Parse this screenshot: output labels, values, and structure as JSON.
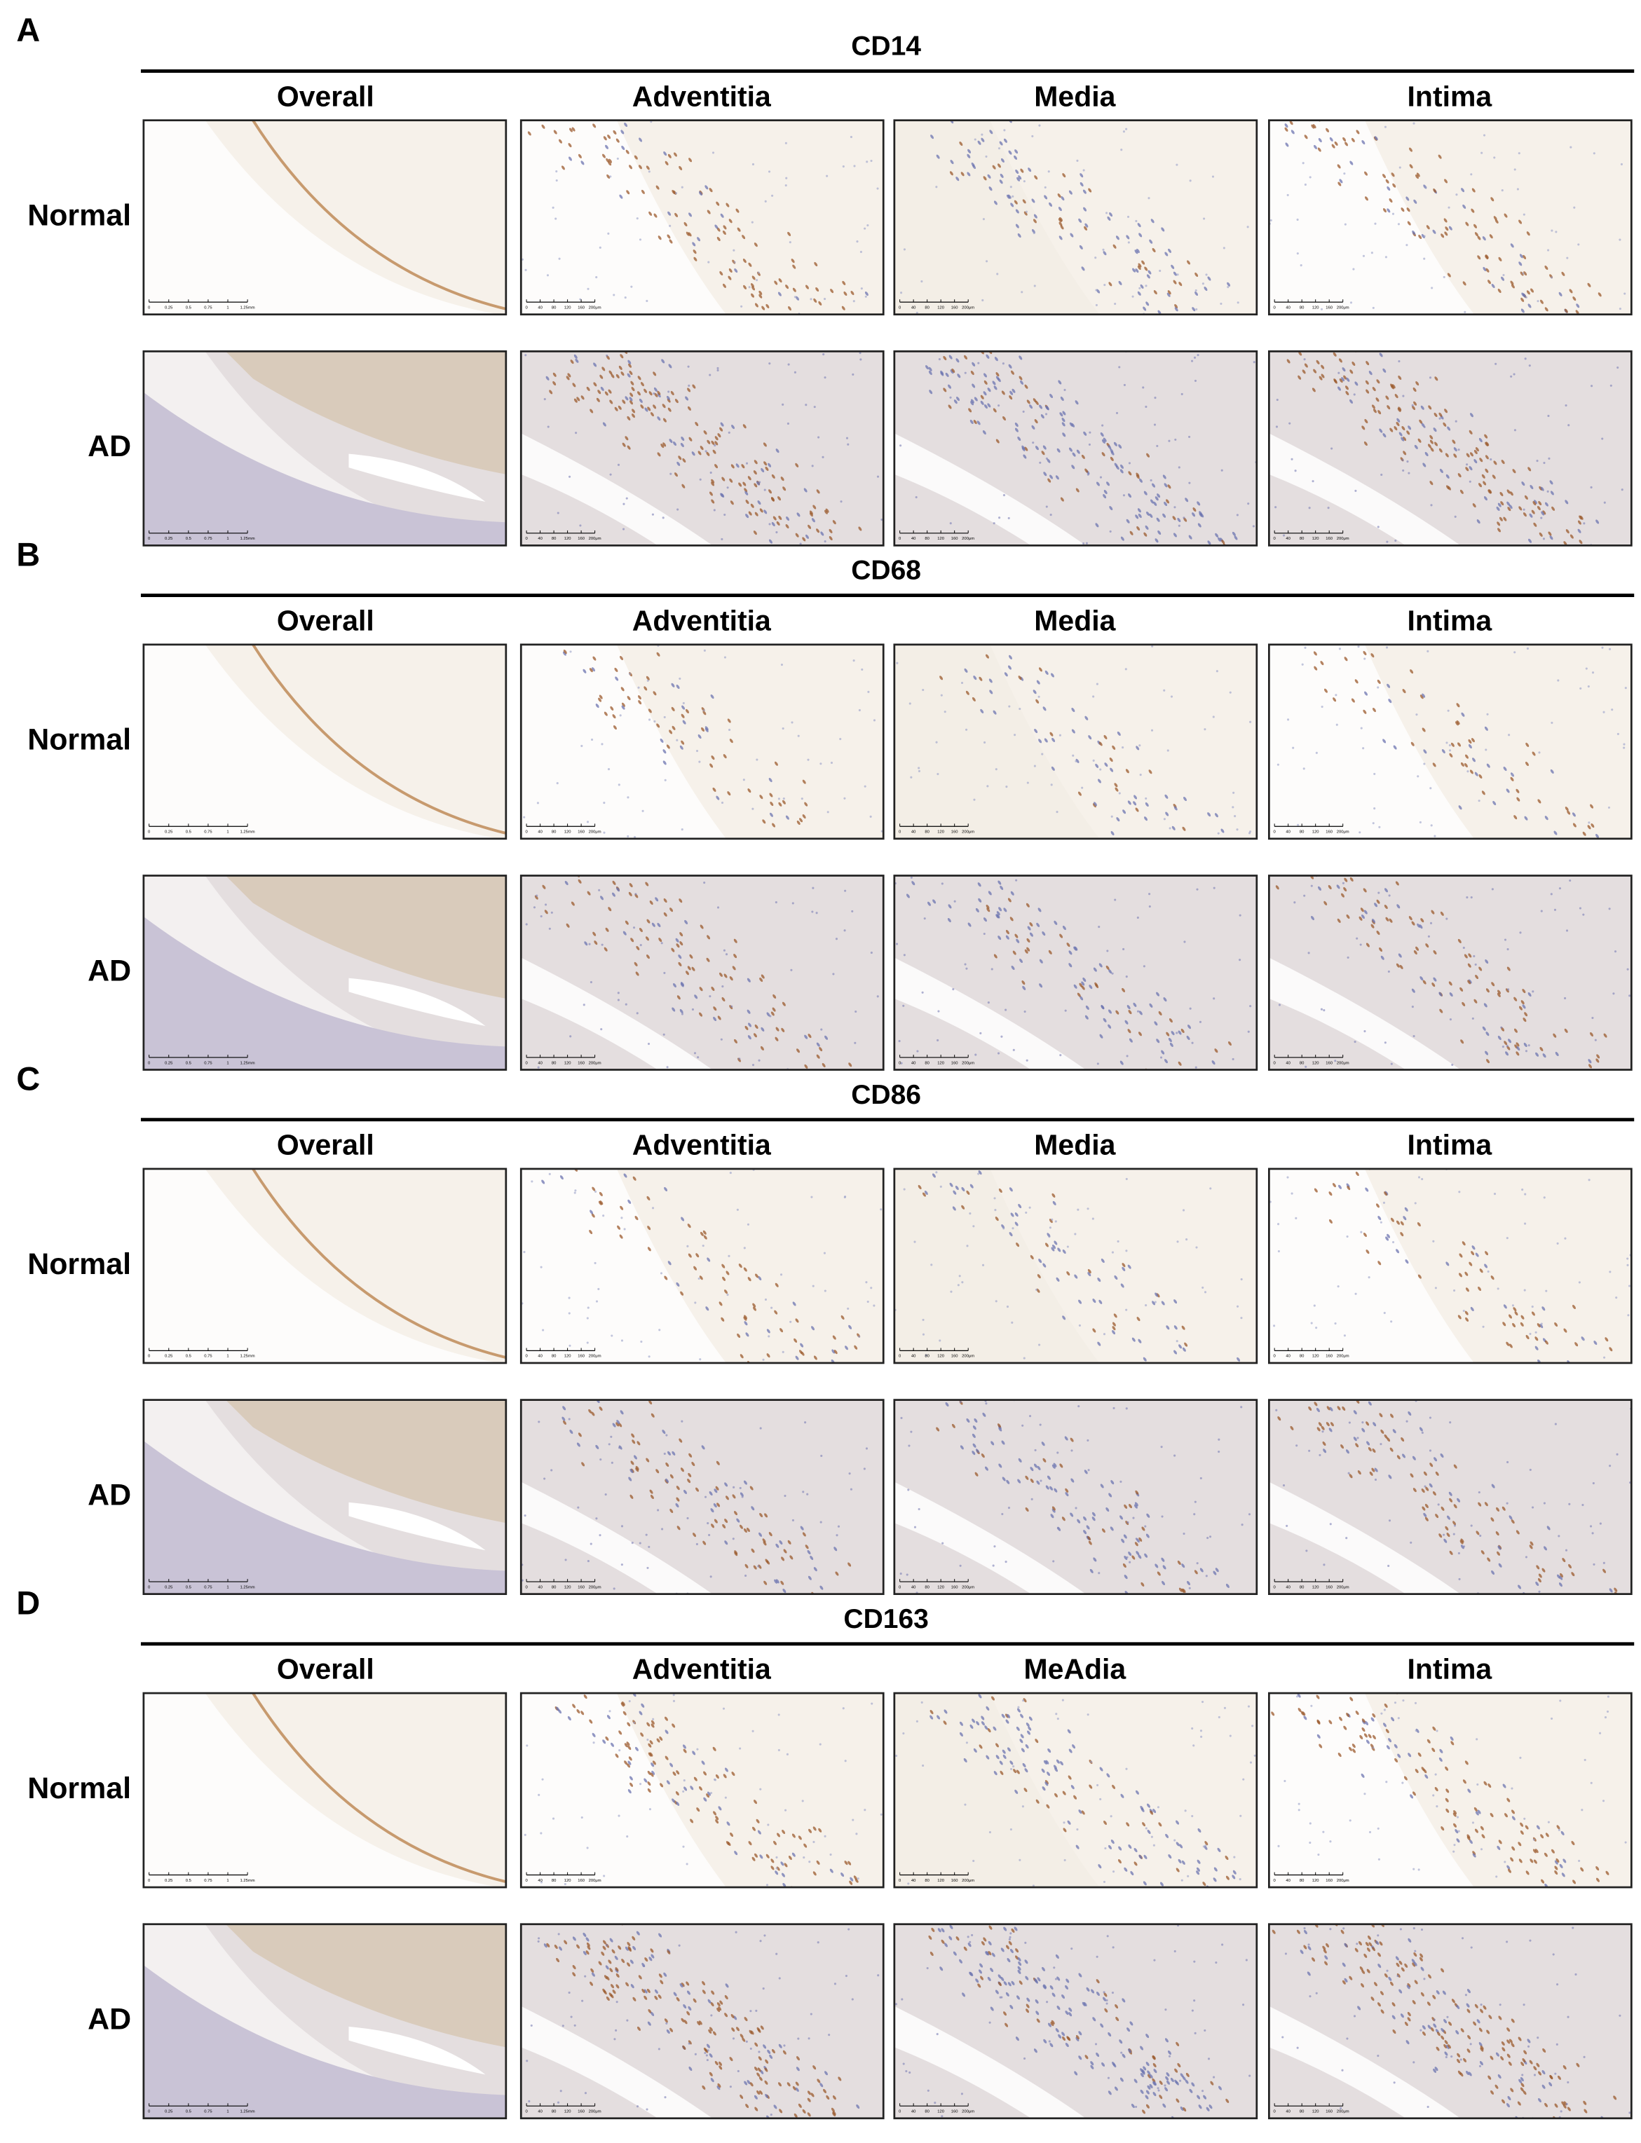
{
  "sections": [
    {
      "letter": "A",
      "marker": "CD14",
      "columns": [
        "Overall",
        "Adventitia",
        "Media",
        "Intima"
      ],
      "rows": [
        "Normal",
        "AD"
      ]
    },
    {
      "letter": "B",
      "marker": "CD68",
      "columns": [
        "Overall",
        "Adventitia",
        "Media",
        "Intima"
      ],
      "rows": [
        "Normal",
        "AD"
      ]
    },
    {
      "letter": "C",
      "marker": "CD86",
      "columns": [
        "Overall",
        "Adventitia",
        "Media",
        "Intima"
      ],
      "rows": [
        "Normal",
        "AD"
      ]
    },
    {
      "letter": "D",
      "marker": "CD163",
      "columns": [
        "Overall",
        "Adventitia",
        "MeAdia",
        "Intima"
      ],
      "rows": [
        "Normal",
        "AD"
      ]
    }
  ],
  "scale_bars": {
    "overall": [
      "0",
      "0.25",
      "0.5",
      "0.75",
      "1",
      "1.25mm"
    ],
    "detail": [
      "0",
      "40",
      "80",
      "120",
      "160",
      "200μm"
    ]
  }
}
